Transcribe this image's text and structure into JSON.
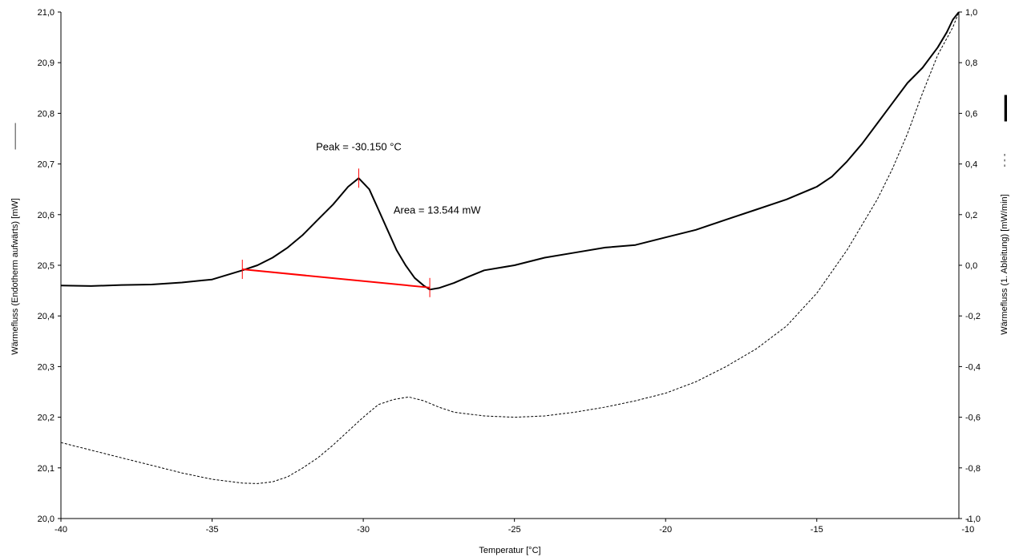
{
  "chart_data": {
    "type": "line",
    "xlabel": "Temperatur [°C]",
    "ylabel_left": "Wärmefluss  (Endotherm aufwärts) [mW]",
    "ylabel_right": "Wärmefluss (1. Ableitung) [mW/min]",
    "xlim": [
      -40,
      -10.3
    ],
    "ylim_left": [
      20.0,
      21.0
    ],
    "ylim_right": [
      -1.0,
      1.0
    ],
    "x_ticks": [
      "-40",
      "-35",
      "-30",
      "-25",
      "-20",
      "-15",
      "-10"
    ],
    "x_tick_values": [
      -40,
      -35,
      -30,
      -25,
      -20,
      -15,
      -10
    ],
    "y_left_ticks": [
      "20,0",
      "20,1",
      "20,2",
      "20,3",
      "20,4",
      "20,5",
      "20,6",
      "20,7",
      "20,8",
      "20,9",
      "21,0"
    ],
    "y_left_tick_values": [
      20.0,
      20.1,
      20.2,
      20.3,
      20.4,
      20.5,
      20.6,
      20.7,
      20.8,
      20.9,
      21.0
    ],
    "y_right_ticks": [
      "-1,0",
      "-0,8",
      "-0,6",
      "-0,4",
      "-0,2",
      "0,0",
      "0,2",
      "0,4",
      "0,6",
      "0,8",
      "1,0"
    ],
    "y_right_tick_values": [
      -1.0,
      -0.8,
      -0.6,
      -0.4,
      -0.2,
      0.0,
      0.2,
      0.4,
      0.6,
      0.8,
      1.0
    ],
    "grid": false,
    "series": [
      {
        "style": "solid",
        "color": "#000000",
        "axis": "left",
        "x": [
          -40,
          -39,
          -38,
          -37,
          -36,
          -35,
          -34,
          -33.5,
          -33,
          -32.5,
          -32,
          -31.5,
          -31,
          -30.5,
          -30.15,
          -29.8,
          -29.5,
          -29.2,
          -28.9,
          -28.6,
          -28.3,
          -28,
          -27.8,
          -27.5,
          -27,
          -26.5,
          -26,
          -25,
          -24,
          -23,
          -22,
          -21,
          -20,
          -19,
          -18,
          -17,
          -16,
          -15,
          -14.5,
          -14,
          -13.5,
          -13,
          -12.5,
          -12,
          -11.5,
          -11,
          -10.7,
          -10.5,
          -10.3
        ],
        "y": [
          20.46,
          20.459,
          20.461,
          20.462,
          20.466,
          20.472,
          20.49,
          20.5,
          20.515,
          20.535,
          20.56,
          20.59,
          20.62,
          20.655,
          20.672,
          20.65,
          20.61,
          20.57,
          20.53,
          20.5,
          20.475,
          20.46,
          20.452,
          20.455,
          20.465,
          20.478,
          20.49,
          20.5,
          20.515,
          20.525,
          20.535,
          20.54,
          20.555,
          20.57,
          20.59,
          20.61,
          20.63,
          20.655,
          20.675,
          20.705,
          20.74,
          20.78,
          20.82,
          20.86,
          20.89,
          20.93,
          20.96,
          20.985,
          21.0
        ]
      },
      {
        "style": "dashed",
        "color": "#000000",
        "axis": "right",
        "x": [
          -40,
          -39,
          -38,
          -37,
          -36,
          -35,
          -34,
          -33.5,
          -33,
          -32.5,
          -32,
          -31.5,
          -31,
          -30.5,
          -30,
          -29.5,
          -29,
          -28.5,
          -28,
          -27.5,
          -27,
          -26,
          -25,
          -24,
          -23,
          -22,
          -21,
          -20,
          -19,
          -18,
          -17,
          -16,
          -15,
          -14,
          -13,
          -12.5,
          -12,
          -11.5,
          -11,
          -10.5,
          -10.3
        ],
        "y": [
          -0.7,
          -0.73,
          -0.76,
          -0.79,
          -0.82,
          -0.845,
          -0.86,
          -0.862,
          -0.855,
          -0.835,
          -0.8,
          -0.76,
          -0.71,
          -0.655,
          -0.6,
          -0.55,
          -0.53,
          -0.52,
          -0.535,
          -0.56,
          -0.58,
          -0.595,
          -0.6,
          -0.595,
          -0.58,
          -0.56,
          -0.535,
          -0.505,
          -0.46,
          -0.4,
          -0.33,
          -0.24,
          -0.11,
          0.06,
          0.26,
          0.38,
          0.52,
          0.68,
          0.83,
          0.94,
          1.0
        ]
      }
    ],
    "baseline": {
      "color": "#ff0000",
      "axis": "left",
      "x": [
        -34.0,
        -27.8
      ],
      "y": [
        20.492,
        20.456
      ]
    },
    "markers": [
      {
        "x": -34.0,
        "y": 20.492,
        "color": "#ff0000"
      },
      {
        "x": -30.15,
        "y": 20.672,
        "color": "#ff0000"
      },
      {
        "x": -27.8,
        "y": 20.456,
        "color": "#ff0000"
      }
    ],
    "annotations": [
      {
        "text": "Peak = -30.150 °C",
        "x": -30.15,
        "y": 20.735
      },
      {
        "text": "Area = 13.544 mW",
        "x": -29.0,
        "y": 20.61
      }
    ],
    "legend_left_symbol": "———",
    "legend_right_symbol_solid": "▬▬▬",
    "legend_right_symbol_dashed": "- - -"
  }
}
